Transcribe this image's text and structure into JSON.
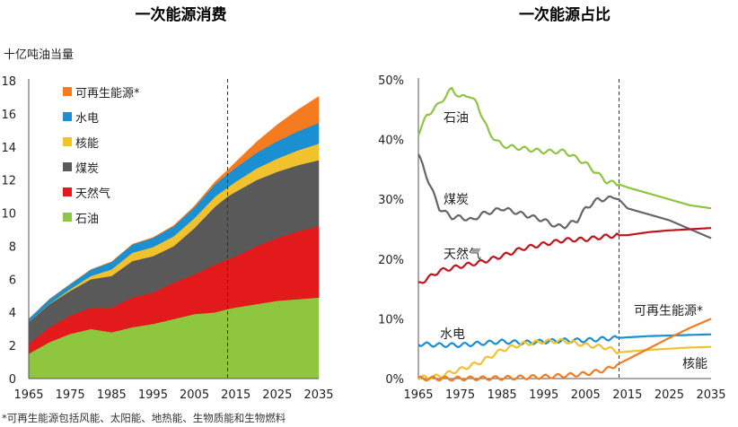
{
  "chart_data": [
    {
      "type": "area",
      "title": "一次能源消费",
      "ylabel": "十亿吨油当量",
      "xlim": [
        1965,
        2035
      ],
      "ylim": [
        0,
        18
      ],
      "xticks": [
        "1965",
        "1975",
        "1985",
        "1995",
        "2005",
        "2015",
        "2025",
        "2035"
      ],
      "yticks": [
        "0",
        "2",
        "4",
        "6",
        "8",
        "10",
        "12",
        "14",
        "16",
        "18"
      ],
      "divider_x": 2013,
      "stacked": true,
      "x": [
        1965,
        1970,
        1975,
        1980,
        1985,
        1990,
        1995,
        2000,
        2005,
        2010,
        2013,
        2015,
        2020,
        2025,
        2030,
        2035
      ],
      "series": [
        {
          "name": "石油",
          "color": "#8ec63f",
          "values": [
            1.5,
            2.2,
            2.7,
            3.0,
            2.8,
            3.1,
            3.3,
            3.6,
            3.9,
            4.0,
            4.2,
            4.3,
            4.5,
            4.7,
            4.8,
            4.9
          ]
        },
        {
          "name": "天然气",
          "color": "#e31a1c",
          "values": [
            0.6,
            0.9,
            1.1,
            1.3,
            1.5,
            1.8,
            1.9,
            2.2,
            2.4,
            2.9,
            3.0,
            3.1,
            3.5,
            3.8,
            4.1,
            4.3
          ]
        },
        {
          "name": "煤炭",
          "color": "#595959",
          "values": [
            1.3,
            1.4,
            1.5,
            1.7,
            1.9,
            2.2,
            2.2,
            2.2,
            2.8,
            3.5,
            3.8,
            3.9,
            4.0,
            4.0,
            4.0,
            4.0
          ]
        },
        {
          "name": "核能",
          "color": "#f2c12e",
          "values": [
            0.0,
            0.02,
            0.1,
            0.2,
            0.4,
            0.5,
            0.55,
            0.6,
            0.6,
            0.6,
            0.55,
            0.6,
            0.7,
            0.8,
            0.9,
            1.0
          ]
        },
        {
          "name": "水电",
          "color": "#1a8fd1",
          "values": [
            0.2,
            0.28,
            0.3,
            0.38,
            0.45,
            0.5,
            0.55,
            0.6,
            0.65,
            0.75,
            0.8,
            0.85,
            0.95,
            1.05,
            1.15,
            1.25
          ]
        },
        {
          "name": "可再生能源*",
          "color": "#f47b20",
          "values": [
            0.0,
            0.0,
            0.0,
            0.0,
            0.01,
            0.02,
            0.03,
            0.05,
            0.08,
            0.15,
            0.25,
            0.35,
            0.65,
            1.0,
            1.3,
            1.6
          ]
        }
      ]
    },
    {
      "type": "line",
      "title": "一次能源占比",
      "xlim": [
        1965,
        2035
      ],
      "ylim": [
        0,
        50
      ],
      "xticks": [
        "1965",
        "1975",
        "1985",
        "1995",
        "2005",
        "2015",
        "2025",
        "2035"
      ],
      "yticks": [
        "0%",
        "10%",
        "20%",
        "30%",
        "40%",
        "50%"
      ],
      "divider_x": 2013,
      "series": [
        {
          "name": "石油",
          "color": "#8ec63f",
          "x": [
            1965,
            1967,
            1970,
            1973,
            1975,
            1977,
            1979,
            1982,
            1985,
            1990,
            1995,
            1998,
            2000,
            2005,
            2010,
            2013,
            2015,
            2020,
            2025,
            2030,
            2035
          ],
          "values": [
            41,
            44,
            46,
            48.5,
            47,
            47.5,
            46,
            41,
            39,
            38.5,
            38,
            38,
            38,
            36,
            33,
            32.5,
            32,
            31,
            30,
            29,
            28.5
          ]
        },
        {
          "name": "煤炭",
          "color": "#666666",
          "x": [
            1965,
            1968,
            1970,
            1973,
            1975,
            1978,
            1980,
            1983,
            1985,
            1990,
            1995,
            1998,
            2000,
            2003,
            2005,
            2008,
            2010,
            2012,
            2013,
            2015,
            2020,
            2025,
            2030,
            2035
          ],
          "values": [
            37.5,
            32,
            28.5,
            27,
            27,
            26.5,
            27.5,
            28,
            28.5,
            27.5,
            26.5,
            25.5,
            25.5,
            26.5,
            28.5,
            30,
            30,
            30.5,
            30,
            28.5,
            27.5,
            26.5,
            25,
            23.5
          ]
        },
        {
          "name": "天然气",
          "color": "#c0141c",
          "x": [
            1965,
            1970,
            1975,
            1980,
            1985,
            1990,
            1995,
            2000,
            2005,
            2010,
            2013,
            2015,
            2020,
            2025,
            2030,
            2035
          ],
          "values": [
            15.8,
            18,
            18.8,
            19.5,
            20.5,
            21.8,
            22.5,
            23.2,
            23.3,
            23.8,
            24,
            24,
            24.5,
            24.8,
            25,
            25.2
          ]
        },
        {
          "name": "水电",
          "color": "#1a8fd1",
          "x": [
            1965,
            1970,
            1975,
            1980,
            1985,
            1990,
            1995,
            2000,
            2005,
            2010,
            2013,
            2015,
            2020,
            2025,
            2030,
            2035
          ],
          "values": [
            5.8,
            5.6,
            5.6,
            5.9,
            6.2,
            6.0,
            6.2,
            6.4,
            6.4,
            6.7,
            6.8,
            6.9,
            7.1,
            7.2,
            7.3,
            7.4
          ]
        },
        {
          "name": "核能",
          "color": "#f2c12e",
          "x": [
            1965,
            1970,
            1975,
            1980,
            1985,
            1990,
            1995,
            2000,
            2005,
            2010,
            2013,
            2015,
            2020,
            2025,
            2030,
            2035
          ],
          "values": [
            0.1,
            0.4,
            1.5,
            2.8,
            4.8,
            5.8,
            6.2,
            6.3,
            5.6,
            5.2,
            4.4,
            4.5,
            4.8,
            5.0,
            5.2,
            5.3
          ]
        },
        {
          "name": "可再生能源*",
          "color": "#f47b20",
          "x": [
            1965,
            1975,
            1985,
            1995,
            2000,
            2005,
            2010,
            2013,
            2015,
            2020,
            2025,
            2030,
            2035
          ],
          "values": [
            0.0,
            0.0,
            0.1,
            0.3,
            0.5,
            0.8,
            1.5,
            2.5,
            3.2,
            5.0,
            6.8,
            8.5,
            10.0
          ]
        }
      ]
    }
  ],
  "footnote": "*可再生能源包括风能、太阳能、地热能、生物质能和生物燃料"
}
